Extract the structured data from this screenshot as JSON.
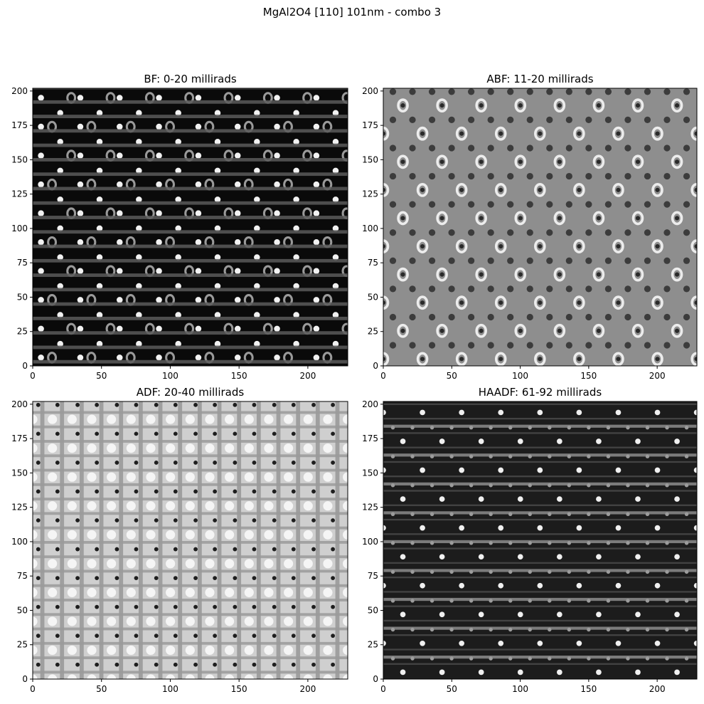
{
  "suptitle": "MgAl2O4 [110] 101nm - combo 3",
  "chart_data": [
    {
      "type": "heatmap",
      "title": "BF: 0-20 millirads",
      "xlim": [
        0,
        229
      ],
      "ylim": [
        0,
        202
      ],
      "xticks": [
        0,
        50,
        100,
        150,
        200
      ],
      "yticks": [
        0,
        25,
        50,
        75,
        100,
        125,
        150,
        175,
        200
      ],
      "colormap": "gray",
      "background": "#0a0a0a",
      "pattern": [
        {
          "kind": "spots",
          "dx": 28.6,
          "dy": 21.0,
          "x0": 6,
          "y0": 6,
          "r": 2.2,
          "color": "#f2f2f2"
        },
        {
          "kind": "spots",
          "dx": 28.6,
          "dy": 21.0,
          "x0": 20,
          "y0": 16,
          "r": 2.2,
          "color": "#f2f2f2"
        },
        {
          "kind": "rings",
          "dx": 28.6,
          "dy": 42.0,
          "x0": 14,
          "y0": 6,
          "r": 3.5,
          "color": "#9a9a9a"
        },
        {
          "kind": "rings",
          "dx": 28.6,
          "dy": 42.0,
          "x0": 28,
          "y0": 27,
          "r": 3.5,
          "color": "#9a9a9a"
        },
        {
          "kind": "hbands",
          "dy": 10.5,
          "y0": 3,
          "h": 2.5,
          "color": "#5a5a5a"
        }
      ]
    },
    {
      "type": "heatmap",
      "title": "ABF: 11-20 millirads",
      "xlim": [
        0,
        229
      ],
      "ylim": [
        0,
        202
      ],
      "xticks": [
        0,
        50,
        100,
        150,
        200
      ],
      "yticks": [
        0,
        25,
        50,
        75,
        100,
        125,
        150,
        175,
        200
      ],
      "colormap": "gray",
      "background": "#8e8e8e",
      "pattern": [
        {
          "kind": "rings",
          "dx": 28.6,
          "dy": 41.0,
          "x0": 0,
          "y0": 5,
          "r": 4.2,
          "color": "#ececec"
        },
        {
          "kind": "rings",
          "dx": 28.6,
          "dy": 41.0,
          "x0": 14.3,
          "y0": 25.5,
          "r": 4.2,
          "color": "#ececec"
        },
        {
          "kind": "spots",
          "dx": 28.6,
          "dy": 41.0,
          "x0": 0,
          "y0": 5,
          "r": 1.6,
          "color": "#2a2a2a"
        },
        {
          "kind": "spots",
          "dx": 28.6,
          "dy": 41.0,
          "x0": 14.3,
          "y0": 25.5,
          "r": 1.6,
          "color": "#2a2a2a"
        },
        {
          "kind": "spots",
          "dx": 14.3,
          "dy": 20.5,
          "x0": 7,
          "y0": 15,
          "r": 2.4,
          "color": "#3c3c3c"
        }
      ]
    },
    {
      "type": "heatmap",
      "title": "ADF: 20-40 millirads",
      "xlim": [
        0,
        229
      ],
      "ylim": [
        0,
        202
      ],
      "xticks": [
        0,
        50,
        100,
        150,
        200
      ],
      "yticks": [
        0,
        25,
        50,
        75,
        100,
        125,
        150,
        175,
        200
      ],
      "colormap": "gray",
      "background": "#cfcfcf",
      "pattern": [
        {
          "kind": "vbands",
          "dx": 14.3,
          "x0": 7,
          "w": 3.0,
          "color": "#8a8a8a"
        },
        {
          "kind": "hbands",
          "dy": 10.5,
          "y0": 5,
          "h": 2.0,
          "color": "#9a9a9a"
        },
        {
          "kind": "spots",
          "dx": 14.3,
          "dy": 21.0,
          "x0": 0,
          "y0": 0,
          "r": 3.4,
          "color": "#f5f5f5"
        },
        {
          "kind": "spots",
          "dx": 28.6,
          "dy": 21.0,
          "x0": 4,
          "y0": 10.5,
          "r": 1.5,
          "color": "#1e1e1e"
        },
        {
          "kind": "spots",
          "dx": 28.6,
          "dy": 21.0,
          "x0": 18,
          "y0": 10.5,
          "r": 1.5,
          "color": "#1e1e1e"
        }
      ]
    },
    {
      "type": "heatmap",
      "title": "HAADF: 61-92 millirads",
      "xlim": [
        0,
        229
      ],
      "ylim": [
        0,
        202
      ],
      "xticks": [
        0,
        50,
        100,
        150,
        200
      ],
      "yticks": [
        0,
        25,
        50,
        75,
        100,
        125,
        150,
        175,
        200
      ],
      "colormap": "gray",
      "background": "#1c1c1c",
      "pattern": [
        {
          "kind": "hbands",
          "dy": 21.0,
          "y0": 16,
          "h": 2.2,
          "color": "#8c8c8c"
        },
        {
          "kind": "hbands",
          "dy": 10.5,
          "y0": 11,
          "h": 1.2,
          "color": "#4a4a4a"
        },
        {
          "kind": "spots",
          "dx": 28.6,
          "dy": 42.0,
          "x0": 14.3,
          "y0": 5,
          "r": 2.0,
          "color": "#f0f0f0"
        },
        {
          "kind": "spots",
          "dx": 28.6,
          "dy": 42.0,
          "x0": 0,
          "y0": 26,
          "r": 2.0,
          "color": "#f0f0f0"
        },
        {
          "kind": "spots",
          "dx": 14.3,
          "dy": 21.0,
          "x0": 7,
          "y0": 15,
          "r": 1.4,
          "color": "#9c9c9c"
        }
      ]
    }
  ]
}
